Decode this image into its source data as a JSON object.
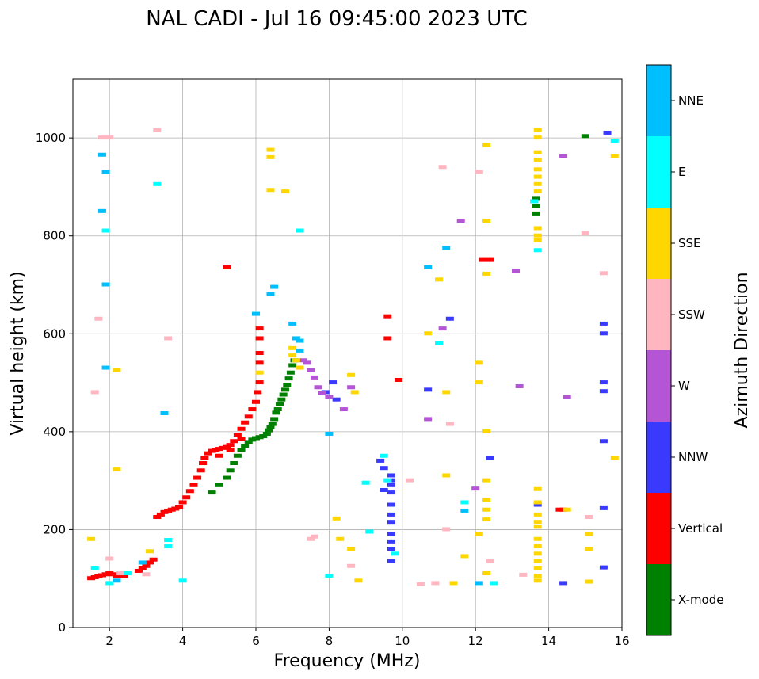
{
  "chart_data": {
    "type": "scatter",
    "title": "NAL CADI - Jul 16 09:45:00 2023 UTC",
    "xlabel": "Frequency (MHz)",
    "ylabel": "Virtual height (km)",
    "xlim": [
      1.0,
      16.0
    ],
    "ylim": [
      0,
      1120
    ],
    "xticks": [
      2,
      4,
      6,
      8,
      10,
      12,
      14,
      16
    ],
    "yticks": [
      0,
      200,
      400,
      600,
      800,
      1000
    ],
    "grid": true,
    "colorbar": {
      "label": "Azimuth Direction",
      "categories": [
        "X-mode",
        "Vertical",
        "NNW",
        "W",
        "SSW",
        "SSE",
        "E",
        "NNE"
      ],
      "colors": [
        "#008000",
        "#ff0000",
        "#3a3aff",
        "#b455d6",
        "#ffb6c1",
        "#ffd700",
        "#00ffff",
        "#00bfff"
      ]
    },
    "series": [
      {
        "name": "X-mode",
        "points": [
          [
            4.8,
            275
          ],
          [
            5.0,
            290
          ],
          [
            5.2,
            305
          ],
          [
            5.3,
            320
          ],
          [
            5.4,
            335
          ],
          [
            5.5,
            350
          ],
          [
            5.6,
            362
          ],
          [
            5.7,
            370
          ],
          [
            5.8,
            378
          ],
          [
            5.9,
            383
          ],
          [
            6.0,
            386
          ],
          [
            6.1,
            388
          ],
          [
            6.2,
            390
          ],
          [
            6.3,
            395
          ],
          [
            6.35,
            402
          ],
          [
            6.4,
            408
          ],
          [
            6.45,
            415
          ],
          [
            6.5,
            425
          ],
          [
            6.55,
            438
          ],
          [
            6.6,
            445
          ],
          [
            6.65,
            455
          ],
          [
            6.7,
            465
          ],
          [
            6.75,
            475
          ],
          [
            6.8,
            485
          ],
          [
            6.85,
            495
          ],
          [
            6.9,
            508
          ],
          [
            6.95,
            520
          ],
          [
            7.0,
            535
          ],
          [
            7.05,
            545
          ],
          [
            13.65,
            845
          ],
          [
            13.65,
            860
          ],
          [
            13.65,
            875
          ],
          [
            15.0,
            1003
          ]
        ]
      },
      {
        "name": "Vertical",
        "points": [
          [
            1.5,
            100
          ],
          [
            1.6,
            102
          ],
          [
            1.7,
            104
          ],
          [
            1.8,
            106
          ],
          [
            1.9,
            108
          ],
          [
            2.0,
            110
          ],
          [
            2.1,
            108
          ],
          [
            2.2,
            104
          ],
          [
            2.3,
            108
          ],
          [
            2.4,
            105
          ],
          [
            2.8,
            115
          ],
          [
            2.9,
            120
          ],
          [
            3.0,
            125
          ],
          [
            3.1,
            132
          ],
          [
            3.2,
            138
          ],
          [
            3.3,
            225
          ],
          [
            3.4,
            230
          ],
          [
            3.5,
            235
          ],
          [
            3.6,
            238
          ],
          [
            3.7,
            240
          ],
          [
            3.8,
            242
          ],
          [
            3.9,
            245
          ],
          [
            4.0,
            255
          ],
          [
            4.1,
            265
          ],
          [
            4.2,
            278
          ],
          [
            4.3,
            290
          ],
          [
            4.4,
            305
          ],
          [
            4.5,
            320
          ],
          [
            4.55,
            335
          ],
          [
            4.6,
            345
          ],
          [
            4.7,
            355
          ],
          [
            4.8,
            360
          ],
          [
            4.9,
            362
          ],
          [
            5.0,
            364
          ],
          [
            5.1,
            366
          ],
          [
            5.2,
            368
          ],
          [
            5.3,
            372
          ],
          [
            5.4,
            380
          ],
          [
            5.5,
            392
          ],
          [
            5.6,
            405
          ],
          [
            5.7,
            418
          ],
          [
            5.8,
            430
          ],
          [
            5.9,
            445
          ],
          [
            6.0,
            460
          ],
          [
            6.05,
            480
          ],
          [
            6.1,
            500
          ],
          [
            6.1,
            540
          ],
          [
            6.1,
            560
          ],
          [
            6.1,
            590
          ],
          [
            6.1,
            610
          ],
          [
            5.0,
            350
          ],
          [
            5.3,
            362
          ],
          [
            5.6,
            385
          ],
          [
            5.2,
            735
          ],
          [
            9.6,
            635
          ],
          [
            9.6,
            590
          ],
          [
            9.9,
            505
          ],
          [
            12.2,
            750
          ],
          [
            12.4,
            750
          ],
          [
            14.3,
            240
          ],
          [
            14.4,
            240
          ]
        ]
      },
      {
        "name": "NNW",
        "points": [
          [
            7.9,
            480
          ],
          [
            8.1,
            500
          ],
          [
            8.2,
            465
          ],
          [
            9.4,
            340
          ],
          [
            9.5,
            325
          ],
          [
            9.7,
            310
          ],
          [
            9.7,
            300
          ],
          [
            9.7,
            290
          ],
          [
            9.7,
            275
          ],
          [
            9.7,
            250
          ],
          [
            9.7,
            230
          ],
          [
            9.7,
            215
          ],
          [
            9.7,
            190
          ],
          [
            9.7,
            175
          ],
          [
            9.7,
            160
          ],
          [
            9.7,
            135
          ],
          [
            9.5,
            280
          ],
          [
            10.7,
            485
          ],
          [
            11.3,
            630
          ],
          [
            12.4,
            345
          ],
          [
            13.7,
            250
          ],
          [
            14.4,
            90
          ],
          [
            15.5,
            620
          ],
          [
            15.5,
            600
          ],
          [
            15.5,
            500
          ],
          [
            15.5,
            482
          ],
          [
            15.5,
            380
          ],
          [
            15.5,
            243
          ],
          [
            15.5,
            122
          ],
          [
            15.6,
            1010
          ]
        ]
      },
      {
        "name": "W",
        "points": [
          [
            7.3,
            545
          ],
          [
            7.4,
            540
          ],
          [
            7.5,
            525
          ],
          [
            7.6,
            510
          ],
          [
            7.7,
            490
          ],
          [
            7.8,
            478
          ],
          [
            8.0,
            470
          ],
          [
            8.4,
            445
          ],
          [
            8.6,
            490
          ],
          [
            10.7,
            425
          ],
          [
            11.1,
            610
          ],
          [
            11.6,
            830
          ],
          [
            13.1,
            728
          ],
          [
            13.2,
            492
          ],
          [
            14.5,
            470
          ],
          [
            14.4,
            962
          ],
          [
            12.0,
            283
          ]
        ]
      },
      {
        "name": "SSW",
        "points": [
          [
            1.6,
            480
          ],
          [
            1.7,
            630
          ],
          [
            1.8,
            1000
          ],
          [
            2.0,
            140
          ],
          [
            2.0,
            1000
          ],
          [
            2.3,
            110
          ],
          [
            3.0,
            108
          ],
          [
            3.3,
            1015
          ],
          [
            3.6,
            590
          ],
          [
            7.5,
            180
          ],
          [
            7.6,
            185
          ],
          [
            8.6,
            125
          ],
          [
            9.6,
            300
          ],
          [
            10.2,
            300
          ],
          [
            10.5,
            88
          ],
          [
            10.9,
            90
          ],
          [
            11.1,
            940
          ],
          [
            11.2,
            200
          ],
          [
            11.3,
            415
          ],
          [
            12.1,
            930
          ],
          [
            12.4,
            135
          ],
          [
            13.3,
            107
          ],
          [
            15.0,
            805
          ],
          [
            15.5,
            723
          ],
          [
            15.1,
            225
          ]
        ]
      },
      {
        "name": "SSE",
        "points": [
          [
            1.5,
            180
          ],
          [
            2.2,
            525
          ],
          [
            2.2,
            322
          ],
          [
            3.1,
            155
          ],
          [
            6.4,
            975
          ],
          [
            6.4,
            960
          ],
          [
            6.4,
            893
          ],
          [
            6.8,
            890
          ],
          [
            7.0,
            570
          ],
          [
            7.0,
            555
          ],
          [
            7.1,
            545
          ],
          [
            7.2,
            530
          ],
          [
            6.1,
            520
          ],
          [
            8.2,
            222
          ],
          [
            8.3,
            180
          ],
          [
            8.6,
            515
          ],
          [
            8.7,
            480
          ],
          [
            8.6,
            160
          ],
          [
            8.8,
            95
          ],
          [
            10.7,
            600
          ],
          [
            11.0,
            710
          ],
          [
            11.2,
            480
          ],
          [
            11.2,
            310
          ],
          [
            11.4,
            90
          ],
          [
            11.7,
            145
          ],
          [
            12.1,
            540
          ],
          [
            12.1,
            500
          ],
          [
            12.1,
            190
          ],
          [
            12.3,
            985
          ],
          [
            12.3,
            830
          ],
          [
            12.3,
            722
          ],
          [
            12.3,
            400
          ],
          [
            12.3,
            300
          ],
          [
            12.3,
            260
          ],
          [
            12.3,
            240
          ],
          [
            12.3,
            220
          ],
          [
            12.3,
            110
          ],
          [
            13.7,
            1015
          ],
          [
            13.7,
            1000
          ],
          [
            13.7,
            970
          ],
          [
            13.7,
            955
          ],
          [
            13.7,
            935
          ],
          [
            13.7,
            920
          ],
          [
            13.7,
            905
          ],
          [
            13.7,
            890
          ],
          [
            13.7,
            815
          ],
          [
            13.7,
            800
          ],
          [
            13.7,
            790
          ],
          [
            13.7,
            282
          ],
          [
            13.7,
            255
          ],
          [
            13.7,
            230
          ],
          [
            13.7,
            215
          ],
          [
            13.7,
            205
          ],
          [
            13.7,
            180
          ],
          [
            13.7,
            165
          ],
          [
            13.7,
            150
          ],
          [
            13.7,
            135
          ],
          [
            13.7,
            120
          ],
          [
            13.7,
            105
          ],
          [
            13.7,
            95
          ],
          [
            14.5,
            240
          ],
          [
            15.1,
            190
          ],
          [
            15.1,
            160
          ],
          [
            15.1,
            93
          ],
          [
            15.8,
            962
          ],
          [
            15.8,
            345
          ]
        ]
      },
      {
        "name": "E",
        "points": [
          [
            1.6,
            120
          ],
          [
            1.9,
            810
          ],
          [
            2.0,
            90
          ],
          [
            2.5,
            110
          ],
          [
            3.3,
            905
          ],
          [
            3.6,
            178
          ],
          [
            3.6,
            165
          ],
          [
            4.0,
            95
          ],
          [
            7.2,
            810
          ],
          [
            8.0,
            105
          ],
          [
            9.0,
            295
          ],
          [
            9.1,
            195
          ],
          [
            9.5,
            350
          ],
          [
            9.6,
            300
          ],
          [
            9.8,
            150
          ],
          [
            11.0,
            580
          ],
          [
            11.7,
            255
          ],
          [
            12.5,
            90
          ],
          [
            13.7,
            770
          ],
          [
            13.6,
            870
          ],
          [
            15.8,
            993
          ]
        ]
      },
      {
        "name": "NNE",
        "points": [
          [
            1.8,
            965
          ],
          [
            1.9,
            930
          ],
          [
            1.8,
            850
          ],
          [
            1.9,
            700
          ],
          [
            1.9,
            530
          ],
          [
            2.2,
            95
          ],
          [
            2.9,
            132
          ],
          [
            3.5,
            437
          ],
          [
            6.0,
            640
          ],
          [
            6.5,
            695
          ],
          [
            6.4,
            680
          ],
          [
            7.0,
            620
          ],
          [
            7.1,
            590
          ],
          [
            7.2,
            585
          ],
          [
            7.2,
            565
          ],
          [
            8.0,
            395
          ],
          [
            10.7,
            735
          ],
          [
            11.2,
            775
          ],
          [
            11.7,
            238
          ],
          [
            12.1,
            90
          ]
        ]
      }
    ]
  }
}
